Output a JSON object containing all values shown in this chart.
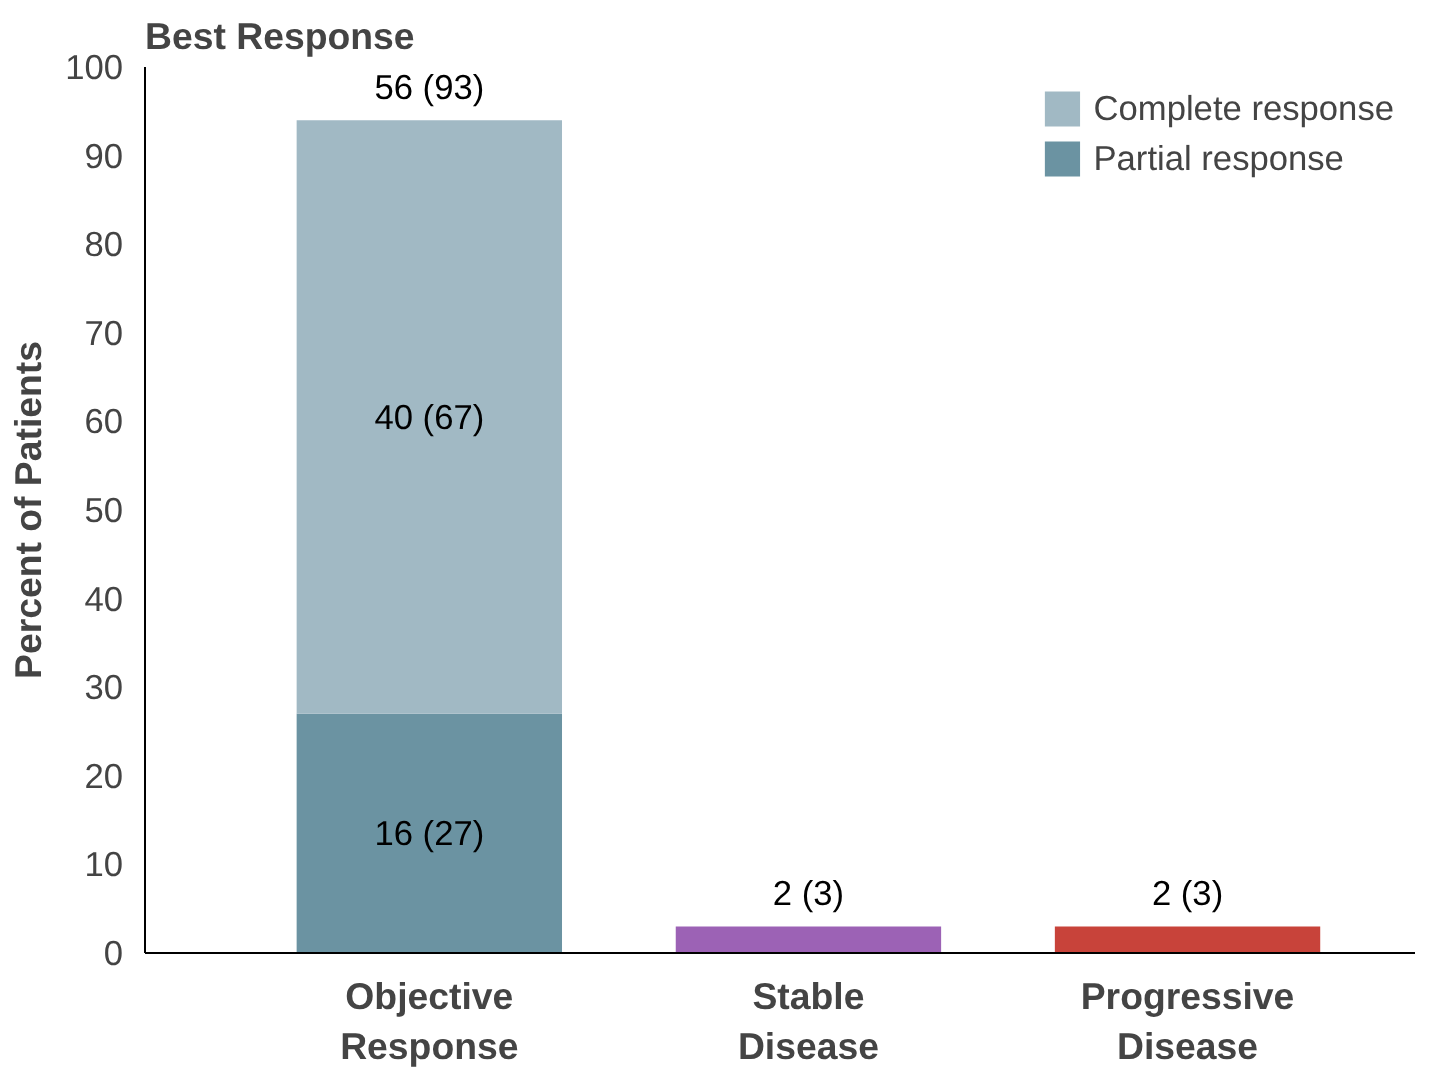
{
  "chart_data": {
    "type": "bar",
    "title": "Best Response",
    "ylabel": "Percent of Patients",
    "categories": [
      "Objective\nResponse",
      "Stable\nDisease",
      "Progressive\nDisease"
    ],
    "stacked": true,
    "series": [
      {
        "name": "Partial response",
        "color": "#6b93a2",
        "values": [
          27,
          null,
          null
        ],
        "value_labels": [
          "16 (27)",
          null,
          null
        ]
      },
      {
        "name": "Complete response",
        "color": "#a1b9c4",
        "values": [
          67,
          null,
          null
        ],
        "value_labels": [
          "40 (67)",
          null,
          null
        ]
      },
      {
        "colors": [
          null,
          "#9c62b5",
          "#c8433a"
        ],
        "values": [
          null,
          3,
          3
        ]
      }
    ],
    "totals": [
      "56 (93)",
      "2 (3)",
      "2 (3)"
    ],
    "ylim": [
      0,
      100
    ],
    "yticks": [
      0,
      10,
      20,
      30,
      40,
      50,
      60,
      70,
      80,
      90,
      100
    ],
    "grid": false,
    "legend": "top right"
  }
}
